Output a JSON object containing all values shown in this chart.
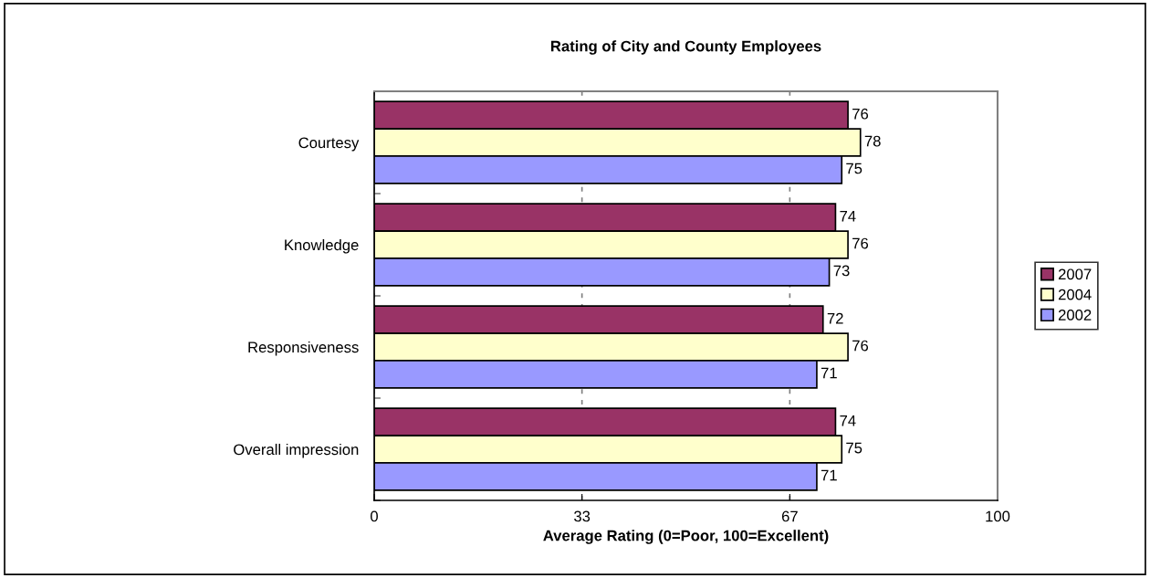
{
  "chart_data": {
    "type": "bar",
    "orientation": "horizontal",
    "title": "Rating of City and County Employees",
    "xlabel": "Average Rating (0=Poor, 100=Excellent)",
    "categories": [
      "Courtesy",
      "Knowledge",
      "Responsiveness",
      "Overall impression"
    ],
    "series": [
      {
        "name": "2007",
        "color": "#993366",
        "values": [
          76,
          74,
          72,
          74
        ]
      },
      {
        "name": "2004",
        "color": "#ffffcc",
        "values": [
          78,
          76,
          76,
          75
        ]
      },
      {
        "name": "2002",
        "color": "#9999ff",
        "values": [
          75,
          73,
          71,
          71
        ]
      }
    ],
    "xlim": [
      0,
      100
    ],
    "xticks": [
      0,
      {
        "value": 33.33,
        "label": "33"
      },
      {
        "value": 66.67,
        "label": "67"
      },
      100
    ],
    "grid": "x",
    "legend": "right",
    "data_labels": true
  }
}
